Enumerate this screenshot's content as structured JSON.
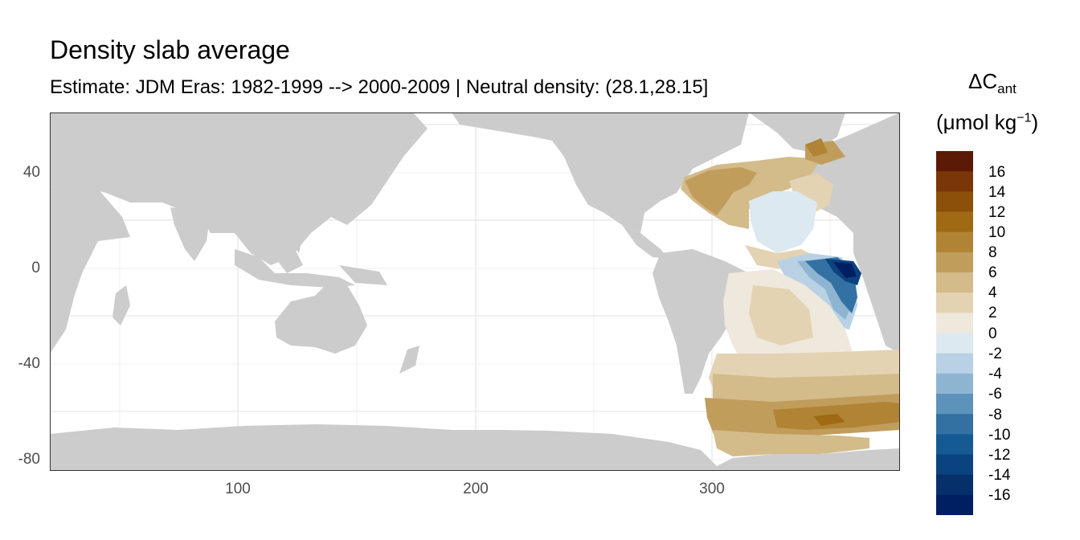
{
  "title": "Density slab average",
  "subtitle": "Estimate: JDM Eras: 1982-1999 --> 2000-2009 | Neutral density: (28.1,28.15]",
  "legend": {
    "title_main": "ΔC",
    "title_sub": "ant",
    "unit_prefix": "(μmol kg",
    "unit_sup": "−1",
    "unit_suffix": ")",
    "labels": [
      "16",
      "14",
      "12",
      "10",
      "8",
      "6",
      "4",
      "2",
      "0",
      "-2",
      "-4",
      "-6",
      "-8",
      "-10",
      "-12",
      "-14",
      "-16"
    ],
    "colors": [
      "#5a1a05",
      "#7a3607",
      "#8c500a",
      "#a06a14",
      "#b08434",
      "#c19d5c",
      "#d3bb8a",
      "#e3d3b3",
      "#efe8dc",
      "#dde9f0",
      "#b8d1e4",
      "#8db5d2",
      "#5d93bb",
      "#3471a3",
      "#165a93",
      "#0a437f",
      "#06306a",
      "#001e62"
    ]
  },
  "axes": {
    "x_ticks": [
      "100",
      "200",
      "300"
    ],
    "y_ticks": [
      "40",
      "0",
      "-40",
      "-80"
    ]
  },
  "colors": {
    "land": "#cccccc",
    "ocean": "#ffffff",
    "grid": "#ebebeb"
  }
}
